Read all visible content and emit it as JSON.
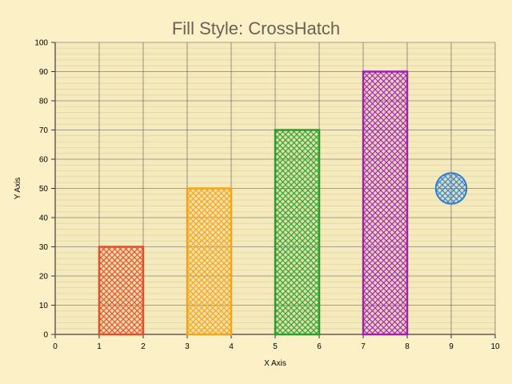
{
  "chart_data": {
    "type": "bar",
    "title": "Fill Style: CrossHatch",
    "xlabel": "X Axis",
    "ylabel": "Y Axis",
    "xlim": [
      0,
      10
    ],
    "ylim": [
      0,
      100
    ],
    "x_ticks": [
      "0",
      "1",
      "2",
      "3",
      "4",
      "5",
      "6",
      "7",
      "8",
      "9",
      "10"
    ],
    "y_ticks": [
      "0",
      "10",
      "20",
      "30",
      "40",
      "50",
      "60",
      "70",
      "80",
      "90",
      "100"
    ],
    "grid": true,
    "fill_style": "crosshatch",
    "colors": {
      "background": "#fcf1c6",
      "plot_background": "#f5eabd",
      "gridline": "#555555",
      "minor_gridline": "#e6d7a4",
      "axis": "#8a7f72",
      "title": "#6b6056"
    },
    "bars": [
      {
        "x_start": 1,
        "x_end": 2,
        "value": 30,
        "color": "#e0502a"
      },
      {
        "x_start": 3,
        "x_end": 4,
        "value": 50,
        "color": "#f5a31a"
      },
      {
        "x_start": 5,
        "x_end": 6,
        "value": 70,
        "color": "#2aa02a"
      },
      {
        "x_start": 7,
        "x_end": 8,
        "value": 90,
        "color": "#a020b0"
      }
    ],
    "points": [
      {
        "x": 9,
        "y": 50,
        "radius": 0.35,
        "color": "#2e7fd0"
      }
    ]
  }
}
